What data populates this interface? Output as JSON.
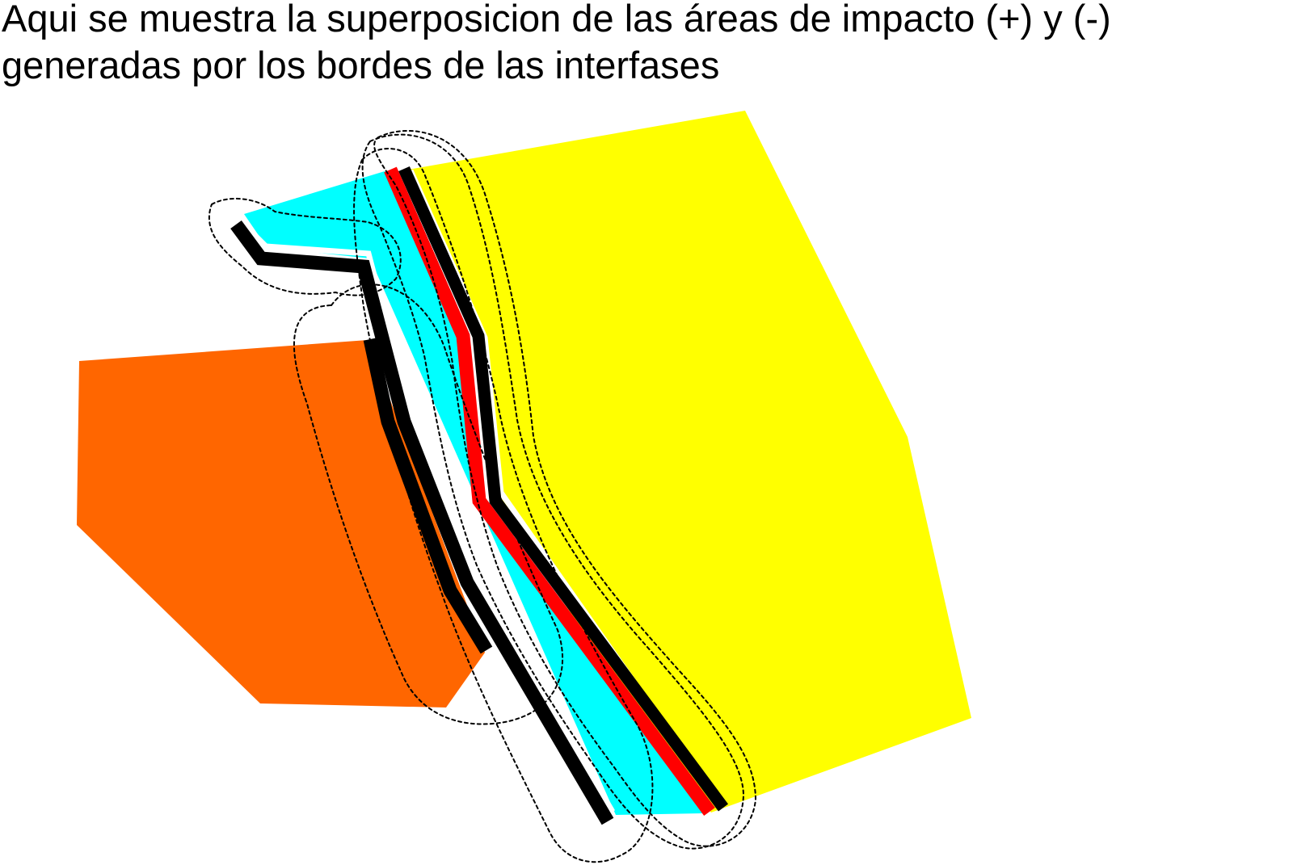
{
  "caption": {
    "line1": "Aqui se muestra la superposicion de las áreas de impacto (+) y (-)",
    "line2": "generadas por los bordes de las interfases"
  },
  "colors": {
    "orange_area": "#ff6600",
    "yellow_area": "#ffff00",
    "cyan_area": "#00ffff",
    "border_black": "#000000",
    "border_red": "#ff0000",
    "impact_outline": "#000000",
    "background": "#ffffff"
  }
}
